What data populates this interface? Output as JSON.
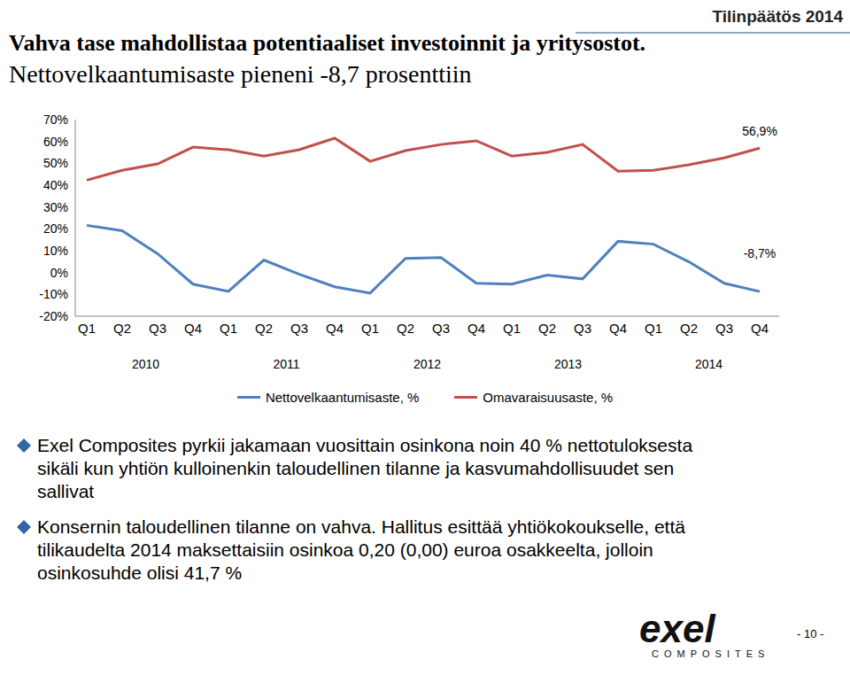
{
  "header": {
    "label": "Tilinpäätös 2014",
    "title": [
      "Vahva tase mahdollistaa potentiaaliset investoinnit ja yritysostot.",
      "Nettovelkaantumisaste pieneni -8,7 prosenttiin"
    ]
  },
  "chart_data": {
    "type": "line",
    "categories": [
      "Q1",
      "Q2",
      "Q3",
      "Q4",
      "Q1",
      "Q2",
      "Q3",
      "Q4",
      "Q1",
      "Q2",
      "Q3",
      "Q4",
      "Q1",
      "Q2",
      "Q3",
      "Q4",
      "Q1",
      "Q2",
      "Q3",
      "Q4"
    ],
    "category_groups": [
      "2010",
      "2011",
      "2012",
      "2013",
      "2014"
    ],
    "series": [
      {
        "name": "Nettovelkaantumisaste, %",
        "color": "#4f81bd",
        "values": [
          21.6,
          19.1,
          8.6,
          -5.3,
          -8.6,
          5.7,
          -0.8,
          -6.5,
          -9.4,
          6.5,
          6.9,
          -4.9,
          -5.3,
          -1.2,
          -2.9,
          14.3,
          13.0,
          4.9,
          -4.9,
          -8.7
        ],
        "value_labels": [
          null,
          null,
          null,
          null,
          null,
          null,
          null,
          null,
          null,
          null,
          null,
          null,
          null,
          null,
          null,
          null,
          null,
          null,
          null,
          "-8,7%"
        ]
      },
      {
        "name": "Omavaraisuusaste, %",
        "color": "#c0504d",
        "values": [
          42.3,
          46.8,
          49.7,
          57.4,
          56.2,
          53.3,
          56.2,
          61.5,
          50.9,
          55.8,
          58.6,
          60.3,
          53.3,
          55.0,
          58.6,
          46.4,
          46.8,
          49.3,
          52.5,
          56.9
        ],
        "value_labels": [
          null,
          null,
          null,
          null,
          null,
          null,
          null,
          null,
          null,
          null,
          null,
          null,
          null,
          null,
          null,
          null,
          null,
          null,
          null,
          "56,9%"
        ]
      }
    ],
    "ylim": [
      -20,
      70
    ],
    "yticks": [
      {
        "value": -20,
        "label": "-20%"
      },
      {
        "value": -10,
        "label": "-10%"
      },
      {
        "value": 0,
        "label": "0%"
      },
      {
        "value": 10,
        "label": "10%"
      },
      {
        "value": 20,
        "label": "20%"
      },
      {
        "value": 30,
        "label": "30%"
      },
      {
        "value": 40,
        "label": "40%"
      },
      {
        "value": 50,
        "label": "50%"
      },
      {
        "value": 60,
        "label": "60%"
      },
      {
        "value": 70,
        "label": "70%"
      }
    ],
    "grid": false,
    "legend": "bottom"
  },
  "bullets": [
    "Exel Composites pyrkii jakamaan vuosittain osinkona noin 40 % nettotuloksesta sikäli kun yhtiön kulloinenkin taloudellinen tilanne ja kasvumahdollisuudet sen sallivat",
    "Konsernin taloudellinen tilanne on vahva. Hallitus esittää yhtiökokoukselle, että tilikaudelta 2014 maksettaisiin osinkoa 0,20 (0,00) euroa osakkeelta, jolloin osinkosuhde olisi 41,7 %"
  ],
  "footer": {
    "logo": "exel",
    "logo_sub": "COMPOSITES",
    "page": "- 10 -"
  }
}
